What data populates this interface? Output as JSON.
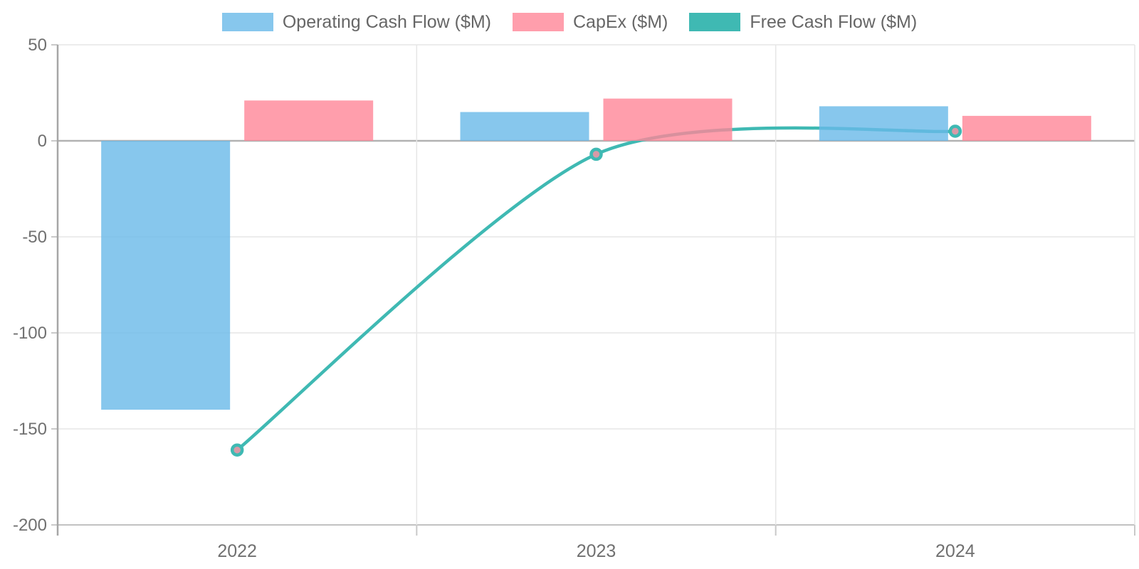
{
  "page": {
    "background": "#ffffff"
  },
  "chart_data": {
    "type": "bar",
    "subtype": "grouped-bar-with-smooth-line-overlay",
    "title": "",
    "xlabel": "",
    "ylabel": "",
    "categories": [
      "2022",
      "2023",
      "2024"
    ],
    "series": [
      {
        "name": "Operating Cash Flow ($M)",
        "kind": "bar",
        "values": [
          -140,
          15,
          18
        ],
        "color": "#69B9E9"
      },
      {
        "name": "CapEx ($M)",
        "kind": "bar",
        "values": [
          21,
          22,
          13
        ],
        "color": "#FF8697"
      },
      {
        "name": "Free Cash Flow ($M)",
        "kind": "line",
        "values": [
          -161,
          -7,
          5
        ],
        "color": "#3FB9B3",
        "point_fill": "#D89AA7",
        "smooth": true
      }
    ],
    "ylim": [
      -200,
      50
    ],
    "yticks": [
      50,
      0,
      -50,
      -100,
      -150,
      -200
    ],
    "grid": true,
    "legend_position": "top",
    "bar_opacity": 0.8
  },
  "colors": {
    "grid_line": "#E6E6E6",
    "zero_line": "#B2B2B2",
    "bottom_line": "#C2C2C2",
    "axis_line": "#A6A6A6",
    "tick_mark": "#C9C9C9",
    "axis_text": "#707070",
    "legend_text": "#666666"
  }
}
